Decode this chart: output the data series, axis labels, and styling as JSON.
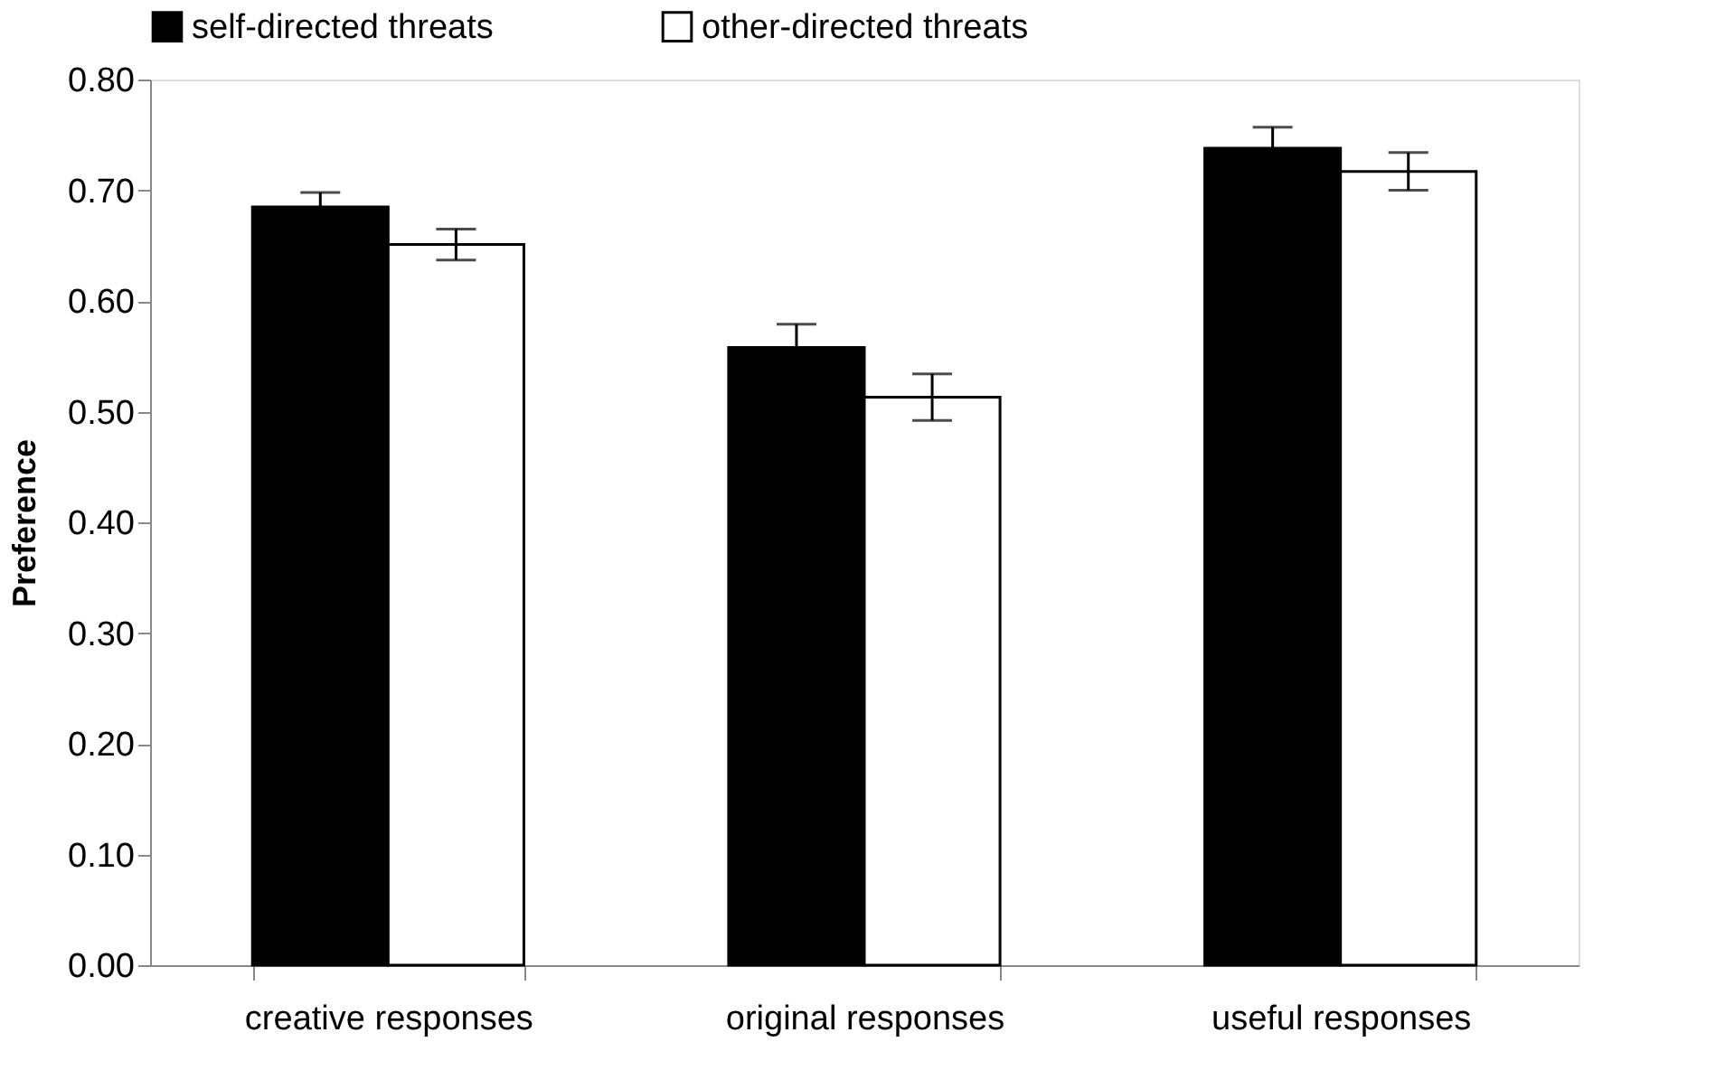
{
  "chart_data": {
    "type": "bar",
    "ylabel": "Preference",
    "categories": [
      "creative responses",
      "original responses",
      "useful responses"
    ],
    "series": [
      {
        "name": "self-directed threats",
        "color": "#000000",
        "values": [
          0.685,
          0.558,
          0.738
        ],
        "errors": [
          0.013,
          0.021,
          0.019
        ]
      },
      {
        "name": "other-directed threats",
        "color": "#ffffff",
        "values": [
          0.651,
          0.513,
          0.717
        ],
        "errors": [
          0.014,
          0.021,
          0.017
        ]
      }
    ],
    "ylim": [
      0,
      0.8
    ],
    "yticks": [
      {
        "value": 0,
        "label": "0.00"
      },
      {
        "value": 0.1,
        "label": "0.10"
      },
      {
        "value": 0.2,
        "label": "0.20"
      },
      {
        "value": 0.3,
        "label": "0.30"
      },
      {
        "value": 0.4,
        "label": "0.40"
      },
      {
        "value": 0.5,
        "label": "0.50"
      },
      {
        "value": 0.6,
        "label": "0.60"
      },
      {
        "value": 0.7,
        "label": "0.70"
      },
      {
        "value": 0.8,
        "label": "0.80"
      }
    ],
    "grid": false,
    "legend": "top"
  }
}
